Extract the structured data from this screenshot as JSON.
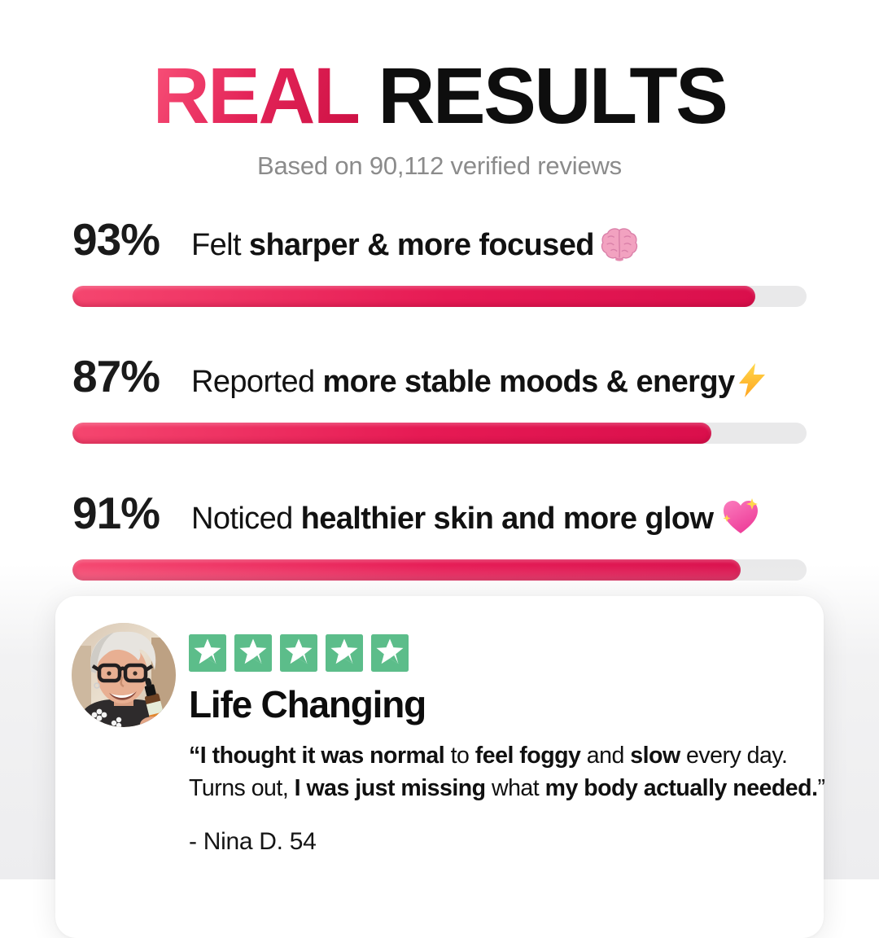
{
  "header": {
    "title_accent": "REAL",
    "title_rest": " RESULTS",
    "subtitle": "Based on 90,112 verified reviews"
  },
  "colors": {
    "accent_pink": "#E32458",
    "bar_fill_start": "#F5466F",
    "bar_fill_end": "#DA0F4C",
    "bar_track": "#E9E9EA",
    "star_green": "#5CBD8A",
    "subtitle_gray": "#8B8B8B",
    "text_black": "#0E0E0E"
  },
  "chart_data": {
    "type": "bar",
    "orientation": "horizontal",
    "title": "REAL RESULTS",
    "subtitle": "Based on 90,112 verified reviews",
    "categories": [
      "Felt sharper & more focused",
      "Reported more stable moods & energy",
      "Noticed healthier skin and more glow"
    ],
    "values": [
      93,
      87,
      91
    ],
    "unit": "%",
    "xlim": [
      0,
      100
    ],
    "grid": false,
    "legend": false
  },
  "stats": [
    {
      "percent": "93%",
      "value": 93,
      "icon": "brain-icon",
      "segments": [
        {
          "t": "Felt ",
          "b": false
        },
        {
          "t": "sharper & more focused",
          "b": true
        }
      ]
    },
    {
      "percent": "87%",
      "value": 87,
      "icon": "lightning-bolt-icon",
      "segments": [
        {
          "t": "Reported ",
          "b": false
        },
        {
          "t": "more stable moods & energy",
          "b": true
        }
      ]
    },
    {
      "percent": "91%",
      "value": 91,
      "icon": "sparkling-heart-icon",
      "segments": [
        {
          "t": "Noticed ",
          "b": false
        },
        {
          "t": "healthier skin and more glow",
          "b": true
        }
      ]
    }
  ],
  "review": {
    "rating": 5,
    "star_icon": "trustpilot-star-icon",
    "avatar_alt": "smiling-woman-with-glasses-holding-supplement-bottle",
    "heading": "Life Changing",
    "quote_lines": [
      [
        {
          "t": "“I thought it was normal",
          "b": true
        },
        {
          "t": " to ",
          "b": false
        },
        {
          "t": "feel foggy",
          "b": true
        },
        {
          "t": " and ",
          "b": false
        },
        {
          "t": "slow",
          "b": true
        },
        {
          "t": " every day.",
          "b": false
        }
      ],
      [
        {
          "t": "Turns out, ",
          "b": false
        },
        {
          "t": "I was just missing",
          "b": true
        },
        {
          "t": " what ",
          "b": false
        },
        {
          "t": "my body actually needed.",
          "b": true
        },
        {
          "t": "”",
          "b": false
        }
      ]
    ],
    "attribution": "- Nina D. 54"
  }
}
